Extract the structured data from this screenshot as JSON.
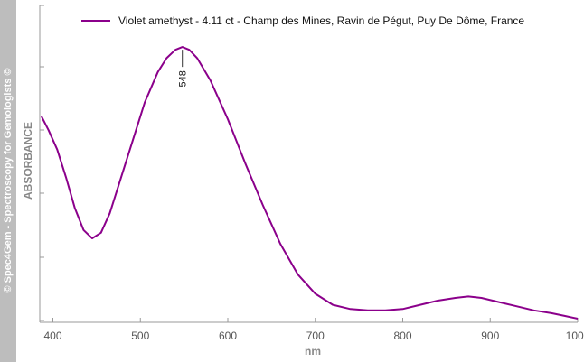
{
  "watermark": "© Spec4Gem - Spectroscopy for Gemologists ©",
  "chart_data": {
    "type": "line",
    "title": "",
    "xlabel": "nm",
    "ylabel": "ABSORBANCE",
    "xlim": [
      385,
      1000
    ],
    "ylim": [
      0,
      1
    ],
    "x_ticks": [
      "400",
      "500",
      "600",
      "700",
      "800",
      "900",
      "1000"
    ],
    "y_tick_labels_shown": false,
    "grid": false,
    "legend_position": "top",
    "series": [
      {
        "name": "Violet amethyst - 4.11 ct - Champ des Mines, Ravin de Pégut, Puy De Dôme, France",
        "color": "#8b008b",
        "x": [
          387,
          395,
          405,
          415,
          425,
          435,
          445,
          455,
          465,
          475,
          490,
          505,
          520,
          530,
          540,
          548,
          556,
          565,
          580,
          600,
          620,
          640,
          660,
          680,
          700,
          720,
          740,
          760,
          780,
          800,
          820,
          840,
          860,
          875,
          890,
          910,
          930,
          950,
          970,
          985,
          1000
        ],
        "y": [
          0.73,
          0.68,
          0.61,
          0.51,
          0.4,
          0.32,
          0.29,
          0.31,
          0.38,
          0.48,
          0.63,
          0.78,
          0.89,
          0.94,
          0.97,
          0.98,
          0.97,
          0.94,
          0.86,
          0.72,
          0.56,
          0.41,
          0.27,
          0.16,
          0.09,
          0.05,
          0.035,
          0.03,
          0.03,
          0.035,
          0.05,
          0.065,
          0.075,
          0.08,
          0.075,
          0.06,
          0.045,
          0.03,
          0.02,
          0.01,
          0.0
        ]
      }
    ],
    "annotations": [
      {
        "x": 548,
        "label": "548"
      }
    ]
  }
}
